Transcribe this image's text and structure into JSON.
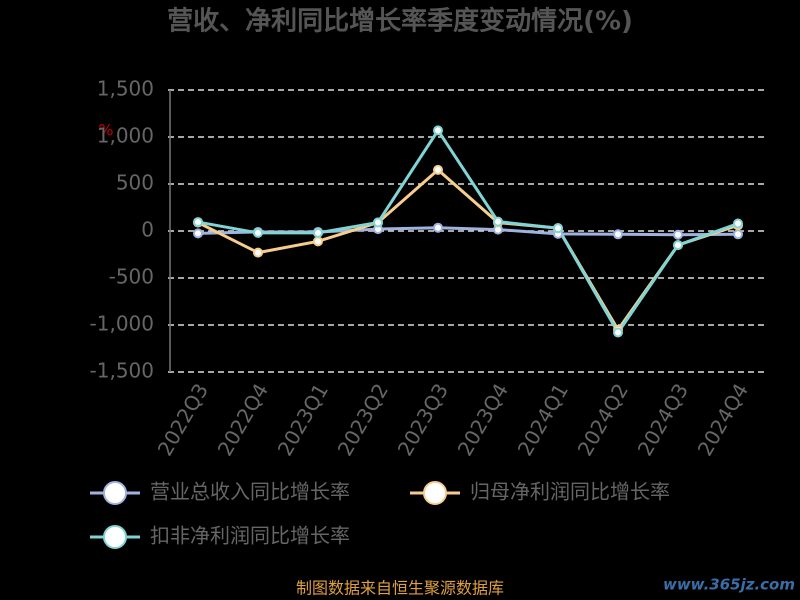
{
  "chart_data": {
    "type": "line",
    "title": "营收、净利同比增长率季度变动情况(%)",
    "y_unit": "%",
    "categories": [
      "2022Q3",
      "2022Q4",
      "2023Q1",
      "2023Q2",
      "2023Q3",
      "2023Q4",
      "2024Q1",
      "2024Q2",
      "2024Q3",
      "2024Q4"
    ],
    "series": [
      {
        "name": "营业总收入同比增长率",
        "color": "#9fb3e0",
        "values": [
          -25,
          -10,
          -10,
          20,
          35,
          15,
          -30,
          -35,
          -40,
          -35
        ]
      },
      {
        "name": "归母净利润同比增长率",
        "color": "#f7cd8e",
        "values": [
          90,
          -230,
          -110,
          90,
          650,
          90,
          30,
          -1050,
          -150,
          60
        ]
      },
      {
        "name": "扣非净利润同比增长率",
        "color": "#80d4d4",
        "values": [
          95,
          -20,
          -20,
          90,
          1070,
          100,
          30,
          -1080,
          -150,
          80
        ]
      }
    ],
    "ylim": [
      -1500,
      1500
    ],
    "yticks": [
      {
        "value": -1500,
        "label": "-1,500"
      },
      {
        "value": -1000,
        "label": "-1,000"
      },
      -500,
      0,
      500,
      {
        "value": 1000,
        "label": "1,000"
      },
      {
        "value": 1500,
        "label": "1,500"
      }
    ],
    "grid": true,
    "source": "制图数据来自恒生聚源数据库",
    "watermark": "www.365jz.com"
  }
}
